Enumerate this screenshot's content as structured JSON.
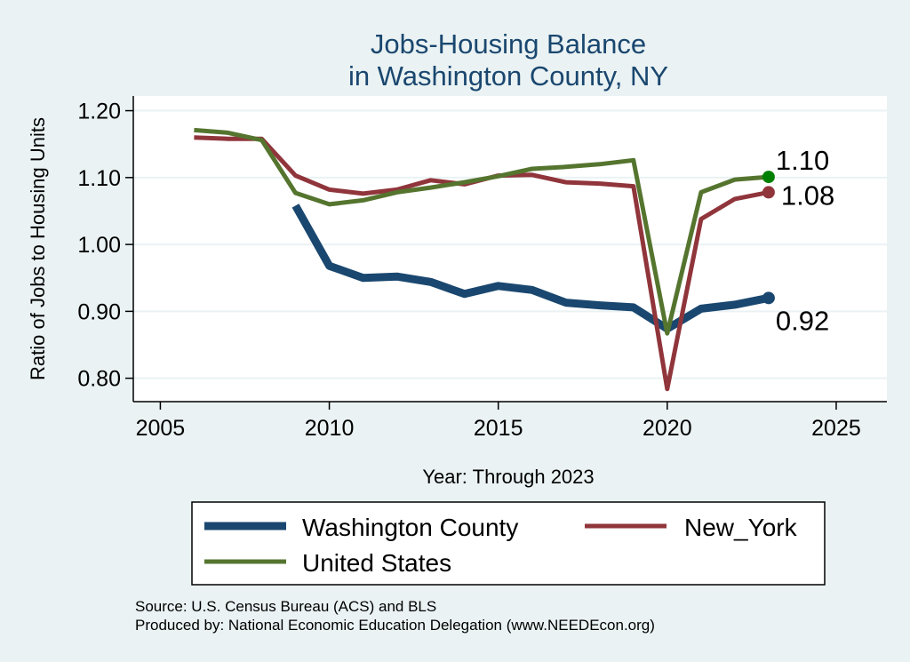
{
  "chart_data": {
    "type": "line",
    "title_lines": [
      "Jobs-Housing Balance",
      "in Washington County, NY"
    ],
    "xlabel": "Year: Through 2023",
    "ylabel": "Ratio of Jobs to Housing Units",
    "xlim": [
      2004.2,
      2026.5
    ],
    "ylim": [
      0.765,
      1.222
    ],
    "x_ticks": [
      2005,
      2010,
      2015,
      2020,
      2025
    ],
    "y_ticks": [
      0.8,
      0.9,
      1.0,
      1.1,
      1.2
    ],
    "y_tick_labels": [
      "0.80",
      "0.90",
      "1.00",
      "1.10",
      "1.20"
    ],
    "grid": true,
    "series": [
      {
        "name": "Washington County",
        "color": "#1a476f",
        "x": [
          2009,
          2010,
          2011,
          2012,
          2013,
          2014,
          2015,
          2016,
          2017,
          2018,
          2019,
          2020,
          2021,
          2022,
          2023
        ],
        "values": [
          1.058,
          0.968,
          0.95,
          0.952,
          0.944,
          0.926,
          0.938,
          0.932,
          0.913,
          0.909,
          0.906,
          0.874,
          0.904,
          0.91,
          0.92
        ],
        "end_label": "0.92"
      },
      {
        "name": "New_York",
        "color": "#90353b",
        "x": [
          2006,
          2007,
          2008,
          2009,
          2010,
          2011,
          2012,
          2013,
          2014,
          2015,
          2016,
          2017,
          2018,
          2019,
          2020,
          2021,
          2022,
          2023
        ],
        "values": [
          1.16,
          1.158,
          1.158,
          1.103,
          1.082,
          1.076,
          1.082,
          1.096,
          1.09,
          1.103,
          1.104,
          1.093,
          1.091,
          1.087,
          0.784,
          1.038,
          1.068,
          1.078
        ],
        "end_label": "1.08"
      },
      {
        "name": "United States",
        "color": "#55752f",
        "x": [
          2006,
          2007,
          2008,
          2009,
          2010,
          2011,
          2012,
          2013,
          2014,
          2015,
          2016,
          2017,
          2018,
          2019,
          2020,
          2021,
          2022,
          2023
        ],
        "values": [
          1.171,
          1.167,
          1.156,
          1.077,
          1.06,
          1.066,
          1.078,
          1.085,
          1.093,
          1.102,
          1.113,
          1.116,
          1.12,
          1.126,
          0.867,
          1.078,
          1.097,
          1.101
        ],
        "end_label": "1.10"
      }
    ],
    "legend_position": "bottom"
  },
  "source_lines": [
    "Source: U.S. Census Bureau (ACS) and BLS",
    "Produced by: National Economic Education Delegation (www.NEEDEcon.org)"
  ]
}
